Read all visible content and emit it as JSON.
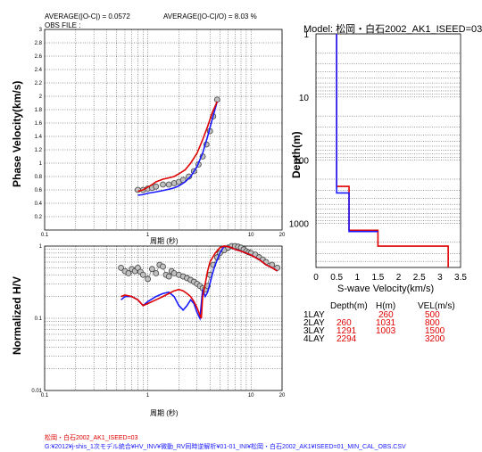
{
  "header": {
    "avg_abs_label": "AVERAGE(|O-C|) = 0.0572",
    "avg_rel_label": "AVERAGE(|O-C|/O) = 8.03 %",
    "obs_file_label": "OBS FILE :"
  },
  "chart_data": [
    {
      "type": "line",
      "id": "phase-velocity",
      "ylabel": "Phase Velocity(km/s)",
      "xlabel": "周期 (秒)",
      "xscale": "log",
      "xlim": [
        0.1,
        20
      ],
      "ylim": [
        0,
        3
      ],
      "xticks": [
        "0.1",
        "1",
        "10",
        "20"
      ],
      "yticks": [
        "0.2",
        "0.4",
        "0.6",
        "0.8",
        "1",
        "1.2",
        "1.4",
        "1.6",
        "1.8",
        "2",
        "2.2",
        "2.4",
        "2.6",
        "2.8",
        "3"
      ],
      "grid": true,
      "series": [
        {
          "color": "#808080",
          "marker": "circle",
          "x": [
            0.8,
            0.9,
            1.0,
            1.1,
            1.2,
            1.4,
            1.6,
            1.8,
            2.0,
            2.2,
            2.5,
            2.8,
            3.1,
            3.4,
            3.7,
            4.0,
            4.3,
            4.7
          ],
          "y": [
            0.6,
            0.6,
            0.62,
            0.63,
            0.65,
            0.68,
            0.68,
            0.7,
            0.72,
            0.75,
            0.8,
            0.88,
            0.98,
            1.1,
            1.28,
            1.48,
            1.7,
            1.95
          ]
        },
        {
          "color": "#1a1aff",
          "x": [
            0.8,
            0.9,
            1.0,
            1.2,
            1.4,
            1.6,
            1.8,
            2.0,
            2.3,
            2.6,
            3.0,
            3.4,
            3.8,
            4.2,
            4.7
          ],
          "y": [
            0.52,
            0.53,
            0.55,
            0.57,
            0.59,
            0.61,
            0.63,
            0.66,
            0.72,
            0.8,
            0.95,
            1.15,
            1.4,
            1.65,
            1.92
          ]
        },
        {
          "color": "#e00000",
          "x": [
            0.8,
            0.9,
            1.0,
            1.1,
            1.2,
            1.4,
            1.6,
            1.8,
            2.0,
            2.3,
            2.6,
            3.0,
            3.4,
            3.8,
            4.2,
            4.7
          ],
          "y": [
            0.58,
            0.6,
            0.64,
            0.68,
            0.72,
            0.76,
            0.78,
            0.8,
            0.84,
            0.9,
            1.0,
            1.15,
            1.35,
            1.55,
            1.75,
            1.92
          ]
        }
      ]
    },
    {
      "type": "line",
      "id": "normalized-hv",
      "ylabel": "Normalized H/V",
      "xlabel": "周期 (秒)",
      "xscale": "log",
      "yscale": "log",
      "xlim": [
        0.1,
        20
      ],
      "ylim": [
        0.01,
        1
      ],
      "xticks": [
        "0.1",
        "1",
        "10",
        "20"
      ],
      "yticks": [
        "0.01",
        "0.1",
        "1"
      ],
      "grid": true,
      "series": [
        {
          "color": "#808080",
          "marker": "circle",
          "x": [
            0.55,
            0.6,
            0.65,
            0.7,
            0.75,
            0.8,
            0.85,
            0.9,
            1.0,
            1.1,
            1.2,
            1.3,
            1.4,
            1.5,
            1.6,
            1.7,
            1.8,
            2.0,
            2.2,
            2.4,
            2.6,
            2.8,
            3.0,
            3.2,
            3.4,
            3.6,
            3.8,
            4.0,
            4.3,
            4.7,
            5.0,
            5.5,
            6.0,
            6.5,
            7.0,
            7.5,
            8.0,
            8.5,
            9.0,
            9.5,
            10.0,
            11.0,
            12.0,
            13.0,
            14.0,
            16.0,
            18.0
          ],
          "y": [
            0.5,
            0.45,
            0.42,
            0.48,
            0.45,
            0.5,
            0.44,
            0.4,
            0.35,
            0.48,
            0.42,
            0.55,
            0.52,
            0.4,
            0.38,
            0.45,
            0.42,
            0.4,
            0.38,
            0.36,
            0.34,
            0.32,
            0.3,
            0.28,
            0.26,
            0.25,
            0.28,
            0.4,
            0.55,
            0.7,
            0.8,
            0.88,
            0.95,
            1.0,
            1.0,
            0.98,
            0.95,
            0.9,
            0.85,
            0.82,
            0.8,
            0.76,
            0.7,
            0.65,
            0.6,
            0.55,
            0.5
          ]
        },
        {
          "color": "#1a1aff",
          "x": [
            0.55,
            0.6,
            0.7,
            0.8,
            0.9,
            1.0,
            1.2,
            1.4,
            1.6,
            1.8,
            2.0,
            2.2,
            2.4,
            2.6,
            2.8,
            3.0,
            3.2,
            3.4,
            3.6,
            3.8,
            4.0,
            4.2,
            4.5,
            5.0,
            5.5,
            6.0,
            6.5,
            7.0,
            8.0,
            9.0,
            10.0,
            12.0,
            14.0,
            16.0,
            18.0
          ],
          "y": [
            0.18,
            0.2,
            0.2,
            0.18,
            0.15,
            0.17,
            0.2,
            0.22,
            0.23,
            0.2,
            0.15,
            0.13,
            0.15,
            0.18,
            0.16,
            0.12,
            0.1,
            0.25,
            0.2,
            0.23,
            0.3,
            0.4,
            0.55,
            0.8,
            1.0,
            0.98,
            0.95,
            0.9,
            0.85,
            0.8,
            0.75,
            0.65,
            0.55,
            0.5,
            0.45
          ]
        },
        {
          "color": "#e00000",
          "x": [
            0.55,
            0.6,
            0.7,
            0.8,
            0.9,
            1.0,
            1.2,
            1.4,
            1.6,
            1.8,
            2.0,
            2.2,
            2.4,
            2.6,
            2.8,
            3.0,
            3.2,
            3.3,
            3.4,
            3.6,
            3.8,
            4.0,
            4.5,
            5.0,
            5.5,
            6.0,
            6.5,
            7.0,
            8.0,
            9.0,
            10.0,
            12.0,
            14.0,
            16.0,
            18.0
          ],
          "y": [
            0.2,
            0.21,
            0.2,
            0.18,
            0.15,
            0.16,
            0.18,
            0.2,
            0.22,
            0.24,
            0.25,
            0.24,
            0.22,
            0.2,
            0.17,
            0.14,
            0.11,
            0.1,
            0.2,
            0.3,
            0.45,
            0.6,
            0.8,
            0.95,
            1.0,
            0.98,
            0.95,
            0.9,
            0.85,
            0.8,
            0.75,
            0.65,
            0.55,
            0.5,
            0.45
          ]
        }
      ]
    },
    {
      "type": "line",
      "id": "velocity-model",
      "title": "Model: 松岡・白石2002_AK1_ISEED=03",
      "ylabel": "Depth(m)",
      "xlabel": "S-wave Velocity(km/s)",
      "yscale": "log",
      "xlim": [
        0,
        3.5
      ],
      "ylim": [
        1,
        5000
      ],
      "xticks": [
        "0",
        "0.5",
        "1",
        "1.5",
        "2",
        "2.5",
        "3",
        "3.5"
      ],
      "yticks": [
        "1",
        "10",
        "100",
        "1000"
      ],
      "grid": true,
      "series": [
        {
          "color": "#e00000",
          "x": [
            0.5,
            0.5,
            0.8,
            0.8,
            1.5,
            1.5,
            3.2,
            3.2
          ],
          "y": [
            1,
            260,
            260,
            1291,
            1291,
            2294,
            2294,
            5000
          ]
        },
        {
          "color": "#1a1aff",
          "x": [
            0.5,
            0.5,
            0.8,
            0.8,
            1.5,
            1.5
          ],
          "y": [
            1,
            330,
            330,
            1350,
            1350,
            1350
          ]
        }
      ]
    }
  ],
  "layer_table": {
    "headers": [
      "Depth(m)",
      "H(m)",
      "VEL(m/s)"
    ],
    "rows": [
      {
        "name": "1LAY",
        "depth": "",
        "h": "260",
        "vel": "500"
      },
      {
        "name": "2LAY",
        "depth": "260",
        "h": "1031",
        "vel": "800"
      },
      {
        "name": "3LAY",
        "depth": "1291",
        "h": "1003",
        "vel": "1500"
      },
      {
        "name": "4LAY",
        "depth": "2294",
        "h": "",
        "vel": "3200"
      }
    ]
  },
  "footer": {
    "line1": "松岡・白石2002_AK1_ISEED=03",
    "line2": "G:¥2012¥j-shis_1次モデル統合¥HV_INV¥微動_RV同時逆解析¥01-01_INI¥松岡・白石2002_AK1¥ISEED=01_MIN_CAL_OBS.CSV"
  }
}
